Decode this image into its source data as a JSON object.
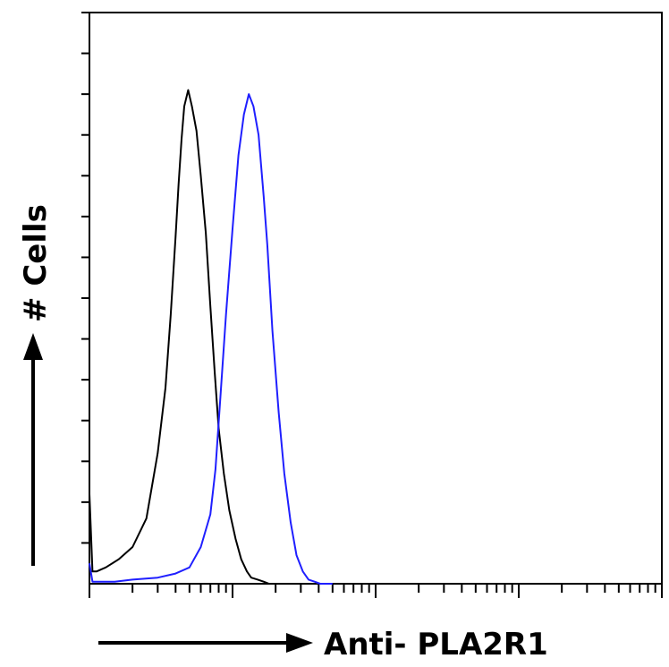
{
  "chart_data": {
    "type": "line",
    "title": "",
    "xlabel": "Anti- PLA2R1",
    "ylabel": "# Cells",
    "x_scale": "log",
    "xlim": [
      1,
      10000
    ],
    "ylim": [
      0,
      140
    ],
    "grid": false,
    "legend": "none",
    "series": [
      {
        "color": "#000000",
        "x": [
          1,
          1.05,
          1.12,
          1.3,
          1.6,
          2.0,
          2.5,
          3.0,
          3.4,
          3.7,
          4.0,
          4.2,
          4.4,
          4.6,
          4.9,
          5.2,
          5.6,
          6.0,
          6.5,
          7.0,
          7.5,
          8.0,
          8.7,
          9.5,
          10.5,
          11.5,
          12.6,
          13.5,
          15,
          16.5,
          18,
          20
        ],
        "y": [
          22,
          3,
          3,
          4,
          6,
          9,
          16,
          32,
          48,
          66,
          85,
          98,
          109,
          117,
          121,
          117,
          111,
          100,
          86,
          68,
          52,
          38,
          27,
          18,
          11,
          6,
          3,
          1.5,
          1,
          0.5,
          0,
          0
        ]
      },
      {
        "color": "#1f1fff",
        "x": [
          1,
          1.05,
          1.12,
          1.5,
          2.0,
          3.0,
          4.0,
          5.0,
          6.0,
          7.0,
          7.6,
          8.2,
          9.0,
          10.0,
          11.0,
          12.0,
          13.0,
          14.0,
          15.2,
          16.5,
          17.5,
          19.0,
          21.0,
          23.0,
          25.5,
          28.0,
          31.0,
          34.0,
          37.5,
          41.0,
          45.0,
          50.0
        ],
        "y": [
          5,
          0.5,
          0.5,
          0.5,
          1,
          1.5,
          2.5,
          4,
          9,
          17,
          28,
          45,
          66,
          87,
          105,
          115,
          120,
          117,
          110,
          95,
          83,
          62,
          42,
          27,
          15,
          7,
          3,
          1,
          0.5,
          0,
          0,
          0
        ]
      }
    ]
  }
}
